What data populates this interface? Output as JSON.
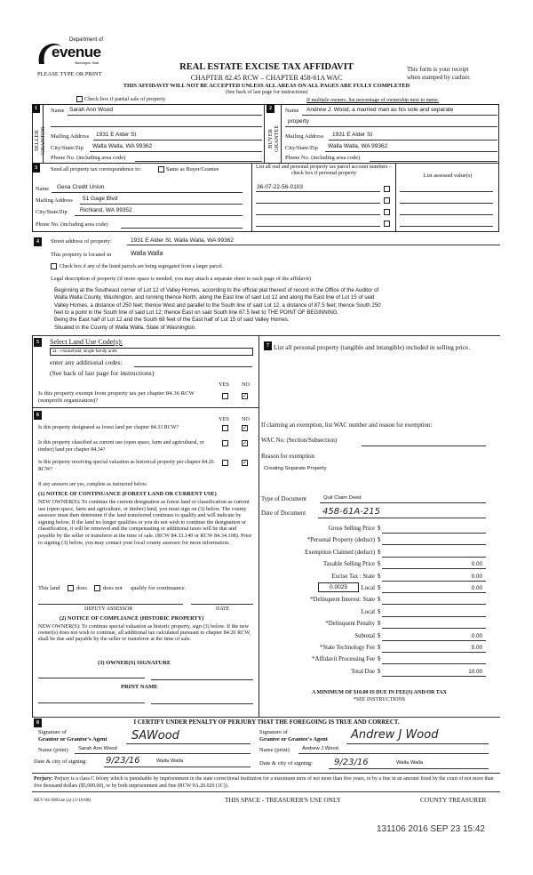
{
  "header": {
    "logo_dept": "Department of",
    "logo_name": "evenue",
    "logo_state": "Washington State",
    "please": "PLEASE TYPE OR PRINT",
    "title": "REAL ESTATE EXCISE TAX AFFIDAVIT",
    "chapter": "CHAPTER 82.45 RCW – CHAPTER 458-61A WAC",
    "warning": "THIS AFFIDAVIT WILL NOT BE ACCEPTED UNLESS ALL AREAS ON ALL PAGES ARE FULLY COMPLETED",
    "see_back": "(See back of last page for instructions)",
    "receipt1": "This form is your receipt",
    "receipt2": "when stamped by cashier.",
    "partial_label": "Check box if partial sale of property",
    "multiple_owners": "If multiple owners, list percentage of ownership next to name."
  },
  "seller": {
    "num": "1",
    "side": "SELLER GRANTOR",
    "name_label": "Name",
    "name": "Sarah Ann Wood",
    "mail_label": "Mailing Address",
    "mail": "1931 E Alder St",
    "city_label": "City/State/Zip",
    "city": "Walla Walla, WA 99362",
    "phone_label": "Phone No. (including area code)"
  },
  "buyer": {
    "num": "2",
    "side": "BUYER GRANTEE",
    "name_label": "Name",
    "name": "Andrew J. Wood, a married man as his sole and separate",
    "name2": "property",
    "mail_label": "Mailing Address",
    "mail": "1931 E Alder St",
    "city_label": "City/State/Zip",
    "city": "Walla Walla, WA 99362",
    "phone_label": "Phone No. (including area code)"
  },
  "tax_corr": {
    "num": "3",
    "label": "Send all property tax correspondence to:",
    "same_label": "Same as Buyer/Grantee",
    "name_label": "Name",
    "name": "Gesa Credit Union",
    "mail_label": "Mailing Address",
    "mail": "51 Gage Blvd",
    "city_label": "City/State/Zip",
    "city": "Richland, WA 99352",
    "phone_label": "Phone No. (including area code)",
    "parcel_header": "List all real and personal property tax parcel account numbers – check box if personal property",
    "assessed_header": "List assessed value(s)",
    "parcels": [
      "36-07-22-56-0103",
      "",
      "",
      ""
    ]
  },
  "property": {
    "num": "4",
    "street_label": "Street address of property:",
    "street": "1931 E Alder St, Walla Walla, WA 99362",
    "located_label": "This property is located in",
    "located": "Walla Walla",
    "segregated_label": "Check box if any of the listed parcels are being segregated from a larger parcel.",
    "legal_label": "Legal description of property (if more space is needed, you may attach a separate sheet to each page of the affidavit)",
    "legal": [
      "Beginning at the Southeast corner of Lot 12 of Valley Homes, according to the official plat thereof of record in the Office of the Auditor of",
      "Walla Walla County, Washington, and running thence North, along the East line of said Lot 12 and along the East line of Lot 15 of said",
      "Valley Homes, a distance of 250 feet; thence West and parallel to the South line of said Lot 12, a distance of 87.5 feet; thence South 250",
      "feet to a point in the South line of said Lot 12; thence East on said South line 87.5 feet to THE POINT OF BEGINNING.",
      "Being the East half of Lot 12 and the South 68 feet of the East half of Lot 15 of said Valley Homes.",
      "Situated in the County of Walla Walla, State of Washington."
    ]
  },
  "land_use": {
    "num": "5",
    "label": "Select Land Use Code(s):",
    "code": "11 - Household, single family units",
    "additional": "enter any additional codes:",
    "see_back": "(See back of last page for instructions)",
    "yes": "YES",
    "no": "NO",
    "exempt_q": "Is this property exempt from property tax per chapter 84.36 RCW (nonprofit organization)?",
    "exempt_answer": "NO"
  },
  "personal": {
    "num": "7",
    "label": "List all  personal property (tangible and intangible) included in selling price."
  },
  "sec6": {
    "num": "6",
    "yes": "YES",
    "no": "NO",
    "questions": [
      {
        "q": "Is this property designated as forest land per chapter 84.33 RCW?",
        "answer": "NO"
      },
      {
        "q": "Is this property classified as current use (open space, farm and agricultural, or timber) land per chapter 84.34?",
        "answer": "NO"
      },
      {
        "q": "Is this property receiving special valuation as historical property per chapter 84.26 RCW?",
        "answer": "NO"
      }
    ],
    "if_yes": "If any answers are yes, complete as instructed below.",
    "notice1_title": "(1) NOTICE OF CONTINUANCE  (FOREST LAND OR CURRENT USE)",
    "notice1_text": "NEW OWNER(S): To continue the current designation as forest land or classification as current use (open space, farm and agriculture, or timber) land, you must sign on (3) below. The county assessor must then determine if the land transferred continues to qualify and will indicate by signing below. If the land no longer qualifies or you do not wish to continue the designation or classification, it will be removed and the compensating or additional taxes will be due and payable by the seller or transferor at the time of sale. (RCW 84.33.140 or RCW 84.34.108). Prior to signing (3) below, you may contact your local county assessor for more information.",
    "this_land": "This land",
    "does": "does",
    "does_not": "does not",
    "qualify": "qualify for continuance.",
    "deputy": "DEPUTY ASSESSOR",
    "date": "DATE",
    "notice2_title": "(2) NOTICE OF COMPLIANCE (HISTORIC PROPERTY)",
    "notice2_text": "NEW OWNER(S): To continue special valuation as historic property, sign (3) below. If the new owner(s) does not wish to continue, all additional tax calculated pursuant to chapter 84.26 RCW, shall be due and payable by the seller or transferor at the time of sale.",
    "owner_sig": "(3)  OWNER(S) SIGNATURE",
    "print_name": "PRINT NAME"
  },
  "exemption": {
    "claim_label": "If claiming an exemption, list WAC number and reason for exemption:",
    "wac_label": "WAC No. (Section/Subsection)",
    "reason_label": "Reason for exemption",
    "reason": "Creating Separate Property",
    "doc_type_label": "Type of Document",
    "doc_type": "Quit Claim Deed",
    "doc_date_label": "Date of Document",
    "doc_date": "458-61A-215"
  },
  "fees": {
    "rows": [
      {
        "label": "Gross Selling Price",
        "value": ""
      },
      {
        "label": "*Personal Property (deduct)",
        "value": ""
      },
      {
        "label": "Exemption Claimed (deduct)",
        "value": ""
      },
      {
        "label": "Taxable Selling Price",
        "value": "0.00"
      },
      {
        "label": "Excise Tax : State",
        "value": "0.00"
      },
      {
        "label": "Local",
        "value": "0.00"
      },
      {
        "label": "*Delinquent Interest: State",
        "value": ""
      },
      {
        "label": "Local",
        "value": ""
      },
      {
        "label": "*Delinquent Penalty",
        "value": ""
      },
      {
        "label": "Subtotal",
        "value": "0.00"
      },
      {
        "label": "*State Technology Fee",
        "value": "5.00"
      },
      {
        "label": "*Affidavit Processing Fee",
        "value": ""
      },
      {
        "label": "Total Due",
        "value": "10.00"
      }
    ],
    "currency": "$",
    "local_rate": "0.0025",
    "minimum": "A MINIMUM OF $10.00 IS DUE IN FEE(S) AND/OR TAX",
    "see_instr": "*SEE INSTRUCTIONS"
  },
  "certify": {
    "num": "8",
    "text": "I CERTIFY UNDER PENALTY OF PERJURY THAT THE FOREGOING IS TRUE AND CORRECT.",
    "grantor_sig1": "Signature of",
    "grantor_sig2": "Grantor or Grantor's Agent",
    "grantor_signature": "SAWood",
    "grantor_name_label": "Name (print)",
    "grantor_name": "Sarah Ann Wood",
    "grantor_date_label": "Date & city of signing:",
    "grantor_date": "9/23/16",
    "grantor_city": "Walla Walla",
    "grantee_sig1": "Signature of",
    "grantee_sig2": "Grantee or Grantee's Agent",
    "grantee_signature": "Andrew J Wood",
    "grantee_name_label": "Name (print)",
    "grantee_name": "Andrew J Wood",
    "grantee_date_label": "Date & city of signing:",
    "grantee_date": "9/23/16",
    "grantee_city": "Walla Walla"
  },
  "footer": {
    "perjury_bold": "Perjury:",
    "perjury": "Perjury is a class C felony which is punishable by imprisonment in the state correctional institution for a maximum term of not more than five years, or by a fine in an amount fixed by the court of not more than five thousand dollars ($5,000.00), or by both imprisonment and fine (RCW 9A.20.020 (1C)).",
    "rev": "REV 84 0001ae (a) (1/10/08)",
    "treasurer_use": "THIS SPACE - TREASURER'S USE ONLY",
    "county_treasurer": "COUNTY TREASURER",
    "stamp": "131106 2016 SEP 23 15:42"
  }
}
